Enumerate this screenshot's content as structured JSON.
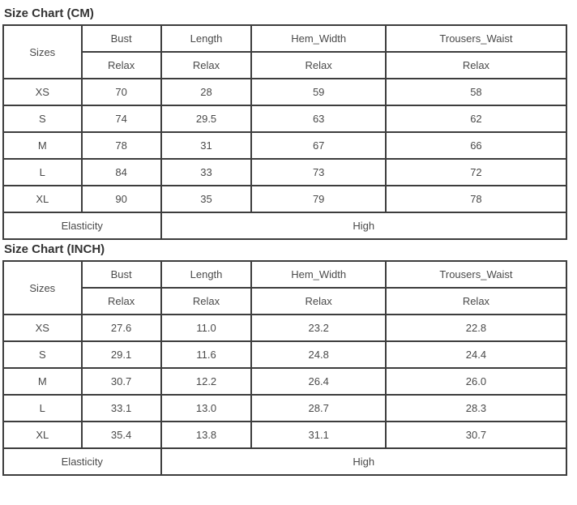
{
  "page": {
    "background": "#ffffff",
    "border_color": "#3d3d3d",
    "text_color": "#4a4a4a",
    "title_color": "#333333"
  },
  "tables": [
    {
      "title": "Size Chart (CM)",
      "header": {
        "sizes_label": "Sizes",
        "columns": [
          "Bust",
          "Length",
          "Hem_Width",
          "Trousers_Waist"
        ],
        "fit": [
          "Relax",
          "Relax",
          "Relax",
          "Relax"
        ]
      },
      "rows": [
        {
          "size": "XS",
          "values": [
            "70",
            "28",
            "59",
            "58"
          ]
        },
        {
          "size": "S",
          "values": [
            "74",
            "29.5",
            "63",
            "62"
          ]
        },
        {
          "size": "M",
          "values": [
            "78",
            "31",
            "67",
            "66"
          ]
        },
        {
          "size": "L",
          "values": [
            "84",
            "33",
            "73",
            "72"
          ]
        },
        {
          "size": "XL",
          "values": [
            "90",
            "35",
            "79",
            "78"
          ]
        }
      ],
      "footer": {
        "label": "Elasticity",
        "value": "High"
      }
    },
    {
      "title": "Size Chart (INCH)",
      "header": {
        "sizes_label": "Sizes",
        "columns": [
          "Bust",
          "Length",
          "Hem_Width",
          "Trousers_Waist"
        ],
        "fit": [
          "Relax",
          "Relax",
          "Relax",
          "Relax"
        ]
      },
      "rows": [
        {
          "size": "XS",
          "values": [
            "27.6",
            "11.0",
            "23.2",
            "22.8"
          ]
        },
        {
          "size": "S",
          "values": [
            "29.1",
            "11.6",
            "24.8",
            "24.4"
          ]
        },
        {
          "size": "M",
          "values": [
            "30.7",
            "12.2",
            "26.4",
            "26.0"
          ]
        },
        {
          "size": "L",
          "values": [
            "33.1",
            "13.0",
            "28.7",
            "28.3"
          ]
        },
        {
          "size": "XL",
          "values": [
            "35.4",
            "13.8",
            "31.1",
            "30.7"
          ]
        }
      ],
      "footer": {
        "label": "Elasticity",
        "value": "High"
      }
    }
  ]
}
